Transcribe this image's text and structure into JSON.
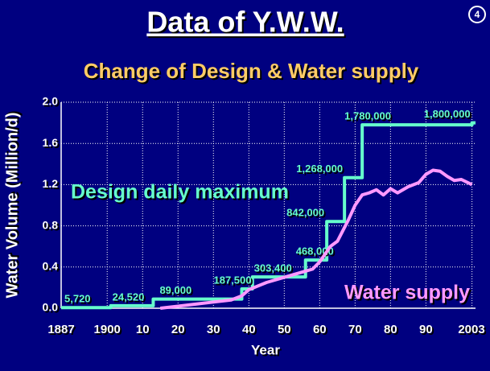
{
  "chart_data": {
    "type": "line",
    "title": "Data of Y.W.W.",
    "page_number": "4",
    "subtitle": "Change of Design & Water supply",
    "y_label": "Water Volume (Million/d)",
    "x_label": "Year",
    "xlim": [
      1887,
      2004
    ],
    "ylim": [
      0,
      2.0
    ],
    "xticks": [
      1887,
      1900,
      {
        "value": 1910,
        "label": "10"
      },
      {
        "value": 1920,
        "label": "20"
      },
      {
        "value": 1930,
        "label": "30"
      },
      {
        "value": 1940,
        "label": "40"
      },
      {
        "value": 1950,
        "label": "50"
      },
      {
        "value": 1960,
        "label": "60"
      },
      {
        "value": 1970,
        "label": "70"
      },
      {
        "value": 1980,
        "label": "80"
      },
      {
        "value": 1990,
        "label": "90"
      },
      2003
    ],
    "yticks": [
      {
        "value": 0,
        "label": "0.0"
      },
      0.4,
      0.8,
      1.2,
      1.6,
      {
        "value": 2,
        "label": "2.0"
      }
    ],
    "grid": true,
    "series": [
      {
        "name": "Design daily maximum",
        "color": "#66ffcc",
        "step": true,
        "x": [
          1887,
          1901,
          1913,
          1938,
          1941,
          1956,
          1962,
          1967,
          1972,
          2003
        ],
        "values": [
          0.00572,
          0.02452,
          0.089,
          0.1875,
          0.3034,
          0.468,
          0.842,
          1.268,
          1.78,
          1.8
        ],
        "value_labels": [
          "5,720",
          "24,520",
          "89,000",
          "187,500",
          "303,400",
          "468,000",
          "842,000",
          "1,268,000",
          "1,780,000",
          "1,800,000"
        ]
      },
      {
        "name": "Water supply",
        "color": "#ff99ff",
        "x": [
          1915,
          1920,
          1925,
          1930,
          1935,
          1938,
          1940,
          1945,
          1950,
          1955,
          1958,
          1960,
          1963,
          1965,
          1968,
          1970,
          1972,
          1974,
          1976,
          1978,
          1980,
          1982,
          1985,
          1988,
          1990,
          1992,
          1994,
          1996,
          1998,
          2000,
          2003
        ],
        "values": [
          0,
          0.02,
          0.04,
          0.06,
          0.08,
          0.12,
          0.18,
          0.25,
          0.3,
          0.35,
          0.38,
          0.45,
          0.6,
          0.65,
          0.85,
          1.0,
          1.1,
          1.12,
          1.15,
          1.1,
          1.16,
          1.12,
          1.18,
          1.22,
          1.3,
          1.34,
          1.33,
          1.28,
          1.24,
          1.25,
          1.2
        ]
      }
    ]
  }
}
